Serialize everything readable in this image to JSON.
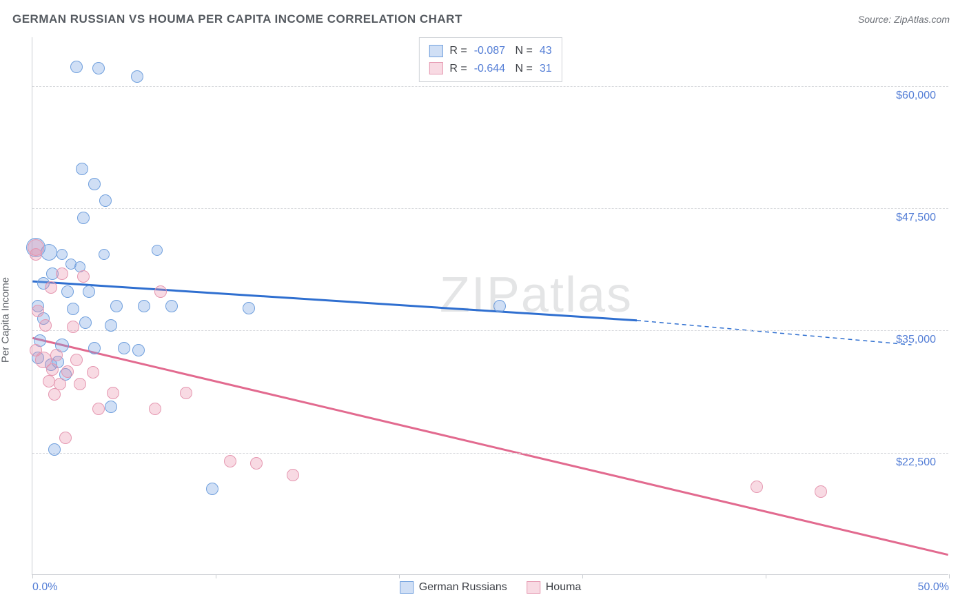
{
  "header": {
    "title": "GERMAN RUSSIAN VS HOUMA PER CAPITA INCOME CORRELATION CHART",
    "source_label": "Source: ZipAtlas.com"
  },
  "chart": {
    "type": "scatter",
    "y_axis_label": "Per Capita Income",
    "watermark": "ZIPatlas",
    "xlim": [
      0,
      50
    ],
    "ylim": [
      10000,
      65000
    ],
    "x_ticks": [
      0,
      10,
      20,
      30,
      40,
      50
    ],
    "x_tick_labels": {
      "0": "0.0%",
      "50": "50.0%"
    },
    "y_gridlines": [
      22500,
      35000,
      47500,
      60000
    ],
    "y_grid_labels": [
      "$22,500",
      "$35,000",
      "$47,500",
      "$60,000"
    ],
    "grid_color": "#d6d8dc",
    "axis_color": "#c9ccd1",
    "tick_label_color": "#547ed6",
    "background_color": "#ffffff",
    "series": [
      {
        "name": "German Russians",
        "fill": "rgba(120,163,226,0.35)",
        "stroke": "#6f9fdd",
        "line_color": "#2f6fd0",
        "r_value": "-0.087",
        "n_value": "43",
        "trend": {
          "x1": 0,
          "y1": 40000,
          "x2": 33,
          "y2": 36000,
          "dash_x2": 48,
          "dash_y2": 33500
        },
        "points": [
          {
            "x": 2.4,
            "y": 62000,
            "r": 9
          },
          {
            "x": 3.6,
            "y": 61800,
            "r": 9
          },
          {
            "x": 5.7,
            "y": 61000,
            "r": 9
          },
          {
            "x": 2.7,
            "y": 51500,
            "r": 9
          },
          {
            "x": 3.4,
            "y": 50000,
            "r": 9
          },
          {
            "x": 4.0,
            "y": 48300,
            "r": 9
          },
          {
            "x": 2.8,
            "y": 46500,
            "r": 9
          },
          {
            "x": 0.2,
            "y": 43500,
            "r": 14
          },
          {
            "x": 0.9,
            "y": 43000,
            "r": 12
          },
          {
            "x": 6.8,
            "y": 43200,
            "r": 8
          },
          {
            "x": 1.6,
            "y": 42800,
            "r": 8
          },
          {
            "x": 3.9,
            "y": 42800,
            "r": 8
          },
          {
            "x": 2.1,
            "y": 41800,
            "r": 8
          },
          {
            "x": 2.6,
            "y": 41500,
            "r": 8
          },
          {
            "x": 1.1,
            "y": 40800,
            "r": 9
          },
          {
            "x": 0.6,
            "y": 39800,
            "r": 9
          },
          {
            "x": 1.9,
            "y": 39000,
            "r": 9
          },
          {
            "x": 3.1,
            "y": 39000,
            "r": 9
          },
          {
            "x": 0.3,
            "y": 37500,
            "r": 9
          },
          {
            "x": 2.2,
            "y": 37200,
            "r": 9
          },
          {
            "x": 4.6,
            "y": 37500,
            "r": 9
          },
          {
            "x": 6.1,
            "y": 37500,
            "r": 9
          },
          {
            "x": 7.6,
            "y": 37500,
            "r": 9
          },
          {
            "x": 11.8,
            "y": 37300,
            "r": 9
          },
          {
            "x": 25.5,
            "y": 37500,
            "r": 9
          },
          {
            "x": 0.6,
            "y": 36200,
            "r": 9
          },
          {
            "x": 2.9,
            "y": 35800,
            "r": 9
          },
          {
            "x": 4.3,
            "y": 35500,
            "r": 9
          },
          {
            "x": 0.4,
            "y": 34000,
            "r": 9
          },
          {
            "x": 1.6,
            "y": 33500,
            "r": 10
          },
          {
            "x": 3.4,
            "y": 33200,
            "r": 9
          },
          {
            "x": 5.0,
            "y": 33200,
            "r": 9
          },
          {
            "x": 5.8,
            "y": 33000,
            "r": 9
          },
          {
            "x": 0.3,
            "y": 32200,
            "r": 9
          },
          {
            "x": 1.4,
            "y": 31800,
            "r": 9
          },
          {
            "x": 1.0,
            "y": 31500,
            "r": 9
          },
          {
            "x": 1.8,
            "y": 30500,
            "r": 9
          },
          {
            "x": 4.3,
            "y": 27200,
            "r": 9
          },
          {
            "x": 1.2,
            "y": 22800,
            "r": 9
          },
          {
            "x": 9.8,
            "y": 18800,
            "r": 9
          }
        ]
      },
      {
        "name": "Houma",
        "fill": "rgba(232,140,168,0.32)",
        "stroke": "#e597b0",
        "line_color": "#e26a8f",
        "r_value": "-0.644",
        "n_value": "31",
        "trend": {
          "x1": 0,
          "y1": 34200,
          "x2": 50,
          "y2": 12000,
          "dash_x2": 50,
          "dash_y2": 12000
        },
        "points": [
          {
            "x": 0.2,
            "y": 43500,
            "r": 12
          },
          {
            "x": 0.2,
            "y": 42800,
            "r": 9
          },
          {
            "x": 1.6,
            "y": 40800,
            "r": 9
          },
          {
            "x": 2.8,
            "y": 40500,
            "r": 9
          },
          {
            "x": 1.0,
            "y": 39400,
            "r": 9
          },
          {
            "x": 7.0,
            "y": 39000,
            "r": 9
          },
          {
            "x": 0.3,
            "y": 37000,
            "r": 9
          },
          {
            "x": 0.7,
            "y": 35500,
            "r": 9
          },
          {
            "x": 2.2,
            "y": 35400,
            "r": 9
          },
          {
            "x": 0.2,
            "y": 33000,
            "r": 9
          },
          {
            "x": 1.3,
            "y": 32500,
            "r": 9
          },
          {
            "x": 0.6,
            "y": 32000,
            "r": 12
          },
          {
            "x": 2.4,
            "y": 32000,
            "r": 9
          },
          {
            "x": 1.1,
            "y": 31000,
            "r": 9
          },
          {
            "x": 1.9,
            "y": 30800,
            "r": 9
          },
          {
            "x": 3.3,
            "y": 30700,
            "r": 9
          },
          {
            "x": 0.9,
            "y": 29800,
            "r": 9
          },
          {
            "x": 1.5,
            "y": 29500,
            "r": 9
          },
          {
            "x": 2.6,
            "y": 29500,
            "r": 9
          },
          {
            "x": 1.2,
            "y": 28500,
            "r": 9
          },
          {
            "x": 4.4,
            "y": 28600,
            "r": 9
          },
          {
            "x": 8.4,
            "y": 28600,
            "r": 9
          },
          {
            "x": 3.6,
            "y": 27000,
            "r": 9
          },
          {
            "x": 6.7,
            "y": 27000,
            "r": 9
          },
          {
            "x": 1.8,
            "y": 24000,
            "r": 9
          },
          {
            "x": 10.8,
            "y": 21600,
            "r": 9
          },
          {
            "x": 12.2,
            "y": 21400,
            "r": 9
          },
          {
            "x": 14.2,
            "y": 20200,
            "r": 9
          },
          {
            "x": 39.5,
            "y": 19000,
            "r": 9
          },
          {
            "x": 43.0,
            "y": 18500,
            "r": 9
          }
        ]
      }
    ]
  }
}
